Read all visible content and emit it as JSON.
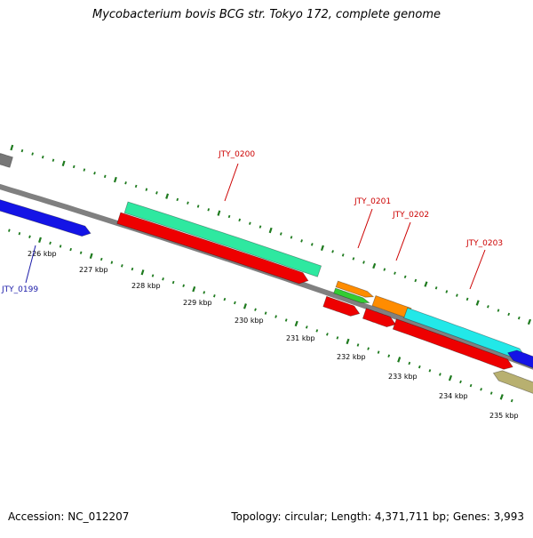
{
  "title": "Mycobacterium bovis BCG str. Tokyo 172, complete genome",
  "footer": {
    "accession": "Accession: NC_012207",
    "topology": "Topology: circular; Length: 4,371,711 bp; Genes: 3,993"
  },
  "scale_labels": [
    "226 kbp",
    "227 kbp",
    "228 kbp",
    "229 kbp",
    "230 kbp",
    "231 kbp",
    "232 kbp",
    "233 kbp",
    "234 kbp",
    "235 kbp"
  ],
  "gene_labels": [
    {
      "text": "JTY_0199",
      "color": "#1a1aa8"
    },
    {
      "text": "JTY_0200",
      "color": "#cc0000"
    },
    {
      "text": "JTY_0201",
      "color": "#cc0000"
    },
    {
      "text": "JTY_0202",
      "color": "#cc0000"
    },
    {
      "text": "JTY_0203",
      "color": "#cc0000"
    }
  ],
  "colors": {
    "backbone": "#808080",
    "ticks": "#1e7a1e",
    "cds_red": "#ee0000",
    "blue": "#1414e6",
    "seagreen": "#2ee8a0",
    "cyan": "#22e8e8",
    "orange": "#ff8c00",
    "green": "#33cc33",
    "khaki": "#b8b070",
    "gray": "#777777"
  }
}
